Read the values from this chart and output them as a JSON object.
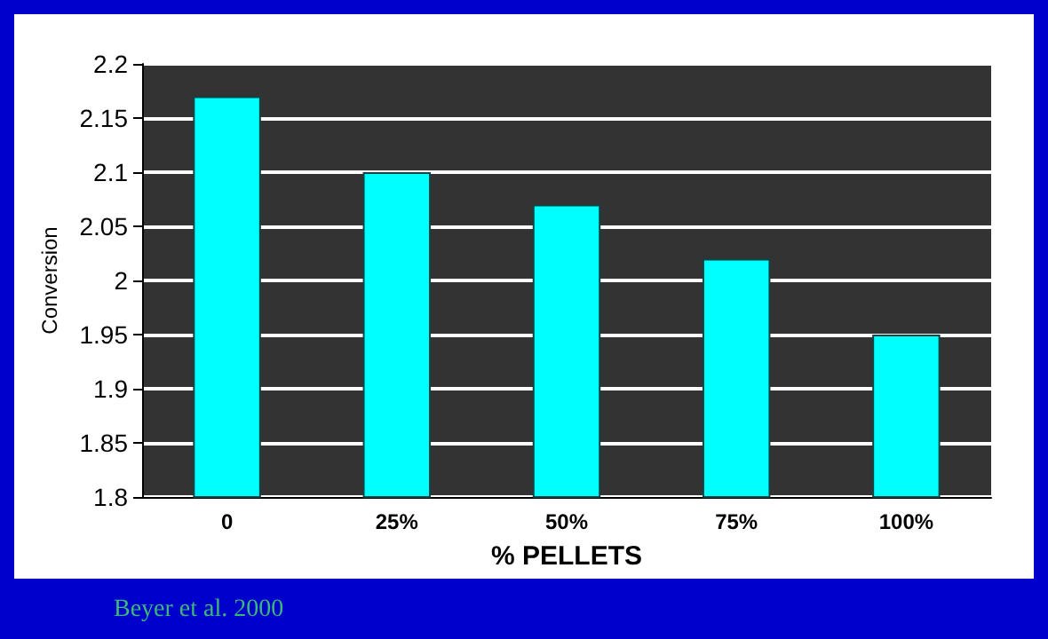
{
  "chart_data": {
    "type": "bar",
    "xlabel": "% PELLETS",
    "ylabel": "Conversion",
    "categories": [
      "0",
      "25%",
      "50%",
      "75%",
      "100%"
    ],
    "values": [
      2.17,
      2.1,
      2.07,
      2.02,
      1.95
    ],
    "color": "#00ffff",
    "ylim": [
      1.8,
      2.2
    ],
    "yticks": [
      1.8,
      1.85,
      1.9,
      1.95,
      2,
      2.05,
      2.1,
      2.15,
      2.2
    ],
    "grid": "y",
    "annotations": [
      "Beyer et al. 2000"
    ]
  }
}
